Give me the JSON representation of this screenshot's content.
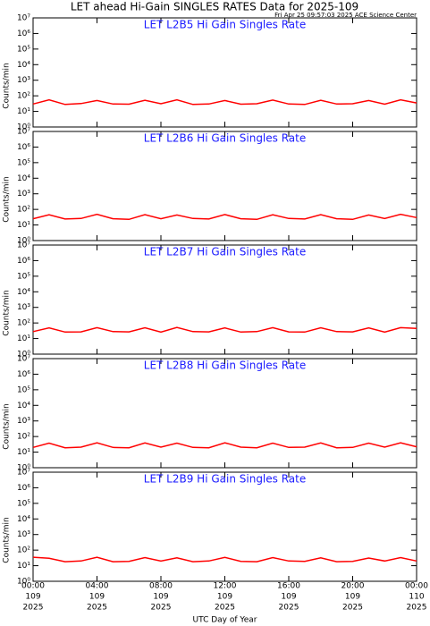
{
  "title": "LET ahead Hi-Gain SINGLES RATES Data for 2025-109",
  "timestamp": "Fri Apr 25 09:57:03 2025 ACE Science Center",
  "chart_data": [
    {
      "type": "line",
      "title": "LET L2B5 Hi Gain Singles Rate",
      "ylabel": "Counts/min",
      "log": true,
      "xlim": [
        0,
        24
      ],
      "xticks": [
        0,
        4,
        8,
        12,
        16,
        20,
        24
      ],
      "ylim": [
        1,
        10000000
      ],
      "yticks": [
        {
          "value": 1,
          "label": "10⁰"
        },
        {
          "value": 10,
          "label": "10¹"
        },
        {
          "value": 100,
          "label": "10²"
        },
        {
          "value": 1000,
          "label": "10³"
        },
        {
          "value": 10000,
          "label": "10⁴"
        },
        {
          "value": 100000,
          "label": "10⁵"
        },
        {
          "value": 1000000,
          "label": "10⁶"
        },
        {
          "value": 10000000,
          "label": "10⁷"
        }
      ],
      "series": [
        {
          "color": "#ff0000",
          "x": [
            0,
            1,
            2,
            3,
            4,
            5,
            6,
            7,
            8,
            9,
            10,
            11,
            12,
            13,
            14,
            15,
            16,
            17,
            18,
            19,
            20,
            21,
            22,
            23,
            24
          ],
          "values": [
            30,
            55,
            28,
            32,
            50,
            30,
            29,
            52,
            31,
            55,
            28,
            30,
            50,
            29,
            31,
            53,
            30,
            28,
            52,
            30,
            31,
            50,
            29,
            55,
            35
          ]
        }
      ]
    },
    {
      "type": "line",
      "title": "LET L2B6 Hi Gain Singles Rate",
      "ylabel": "Counts/min",
      "log": true,
      "xlim": [
        0,
        24
      ],
      "xticks": [
        0,
        4,
        8,
        12,
        16,
        20,
        24
      ],
      "ylim": [
        1,
        10000000
      ],
      "yticks": [
        {
          "value": 1,
          "label": "10⁰"
        },
        {
          "value": 10,
          "label": "10¹"
        },
        {
          "value": 100,
          "label": "10²"
        },
        {
          "value": 1000,
          "label": "10³"
        },
        {
          "value": 10000,
          "label": "10⁴"
        },
        {
          "value": 100000,
          "label": "10⁵"
        },
        {
          "value": 1000000,
          "label": "10⁶"
        },
        {
          "value": 10000000,
          "label": "10⁷"
        }
      ],
      "series": [
        {
          "color": "#ff0000",
          "x": [
            0,
            1,
            2,
            3,
            4,
            5,
            6,
            7,
            8,
            9,
            10,
            11,
            12,
            13,
            14,
            15,
            16,
            17,
            18,
            19,
            20,
            21,
            22,
            23,
            24
          ],
          "values": [
            25,
            45,
            24,
            26,
            48,
            25,
            23,
            46,
            25,
            44,
            26,
            24,
            47,
            25,
            23,
            45,
            26,
            24,
            46,
            25,
            23,
            44,
            26,
            48,
            30
          ]
        }
      ]
    },
    {
      "type": "line",
      "title": "LET L2B7 Hi Gain Singles Rate",
      "ylabel": "Counts/min",
      "log": true,
      "xlim": [
        0,
        24
      ],
      "xticks": [
        0,
        4,
        8,
        12,
        16,
        20,
        24
      ],
      "ylim": [
        1,
        10000000
      ],
      "yticks": [
        {
          "value": 1,
          "label": "10⁰"
        },
        {
          "value": 10,
          "label": "10¹"
        },
        {
          "value": 100,
          "label": "10²"
        },
        {
          "value": 1000,
          "label": "10³"
        },
        {
          "value": 10000,
          "label": "10⁴"
        },
        {
          "value": 100000,
          "label": "10⁵"
        },
        {
          "value": 1000000,
          "label": "10⁶"
        },
        {
          "value": 10000000,
          "label": "10⁷"
        }
      ],
      "series": [
        {
          "color": "#ff0000",
          "x": [
            0,
            1,
            2,
            3,
            4,
            5,
            6,
            7,
            8,
            9,
            10,
            11,
            12,
            13,
            14,
            15,
            16,
            17,
            18,
            19,
            20,
            21,
            22,
            23,
            24
          ],
          "values": [
            28,
            48,
            26,
            27,
            50,
            28,
            27,
            49,
            26,
            51,
            28,
            27,
            48,
            26,
            28,
            50,
            27,
            26,
            49,
            28,
            27,
            48,
            26,
            50,
            45
          ]
        }
      ]
    },
    {
      "type": "line",
      "title": "LET L2B8 Hi Gain Singles Rate",
      "ylabel": "Counts/min",
      "log": true,
      "xlim": [
        0,
        24
      ],
      "xticks": [
        0,
        4,
        8,
        12,
        16,
        20,
        24
      ],
      "ylim": [
        1,
        10000000
      ],
      "yticks": [
        {
          "value": 1,
          "label": "10⁰"
        },
        {
          "value": 10,
          "label": "10¹"
        },
        {
          "value": 100,
          "label": "10²"
        },
        {
          "value": 1000,
          "label": "10³"
        },
        {
          "value": 10000,
          "label": "10⁴"
        },
        {
          "value": 100000,
          "label": "10⁵"
        },
        {
          "value": 1000000,
          "label": "10⁶"
        },
        {
          "value": 10000000,
          "label": "10⁷"
        }
      ],
      "series": [
        {
          "color": "#ff0000",
          "x": [
            0,
            1,
            2,
            3,
            4,
            5,
            6,
            7,
            8,
            9,
            10,
            11,
            12,
            13,
            14,
            15,
            16,
            17,
            18,
            19,
            20,
            21,
            22,
            23,
            24
          ],
          "values": [
            20,
            38,
            19,
            21,
            40,
            20,
            19,
            39,
            21,
            38,
            20,
            19,
            40,
            21,
            19,
            38,
            20,
            21,
            39,
            19,
            20,
            38,
            21,
            40,
            22
          ]
        }
      ]
    },
    {
      "type": "line",
      "title": "LET L2B9 Hi Gain Singles Rate",
      "ylabel": "Counts/min",
      "log": true,
      "xlabel": "UTC Day of Year",
      "xlim": [
        0,
        24
      ],
      "xticks": [
        {
          "value": 0,
          "label": [
            "00:00",
            "109",
            "2025"
          ]
        },
        {
          "value": 4,
          "label": [
            "04:00",
            "109",
            "2025"
          ]
        },
        {
          "value": 8,
          "label": [
            "08:00",
            "109",
            "2025"
          ]
        },
        {
          "value": 12,
          "label": [
            "12:00",
            "109",
            "2025"
          ]
        },
        {
          "value": 16,
          "label": [
            "16:00",
            "109",
            "2025"
          ]
        },
        {
          "value": 20,
          "label": [
            "20:00",
            "109",
            "2025"
          ]
        },
        {
          "value": 24,
          "label": [
            "00:00",
            "110",
            "2025"
          ]
        }
      ],
      "ylim": [
        1,
        10000000
      ],
      "yticks": [
        {
          "value": 1,
          "label": "10⁰"
        },
        {
          "value": 10,
          "label": "10¹"
        },
        {
          "value": 100,
          "label": "10²"
        },
        {
          "value": 1000,
          "label": "10³"
        },
        {
          "value": 10000,
          "label": "10⁴"
        },
        {
          "value": 100000,
          "label": "10⁵"
        },
        {
          "value": 1000000,
          "label": "10⁶"
        },
        {
          "value": 10000000,
          "label": "10⁷"
        }
      ],
      "series": [
        {
          "color": "#ff0000",
          "x": [
            0,
            1,
            2,
            3,
            4,
            5,
            6,
            7,
            8,
            9,
            10,
            11,
            12,
            13,
            14,
            15,
            16,
            17,
            18,
            19,
            20,
            21,
            22,
            23,
            24
          ],
          "values": [
            35,
            30,
            18,
            20,
            35,
            18,
            19,
            33,
            20,
            32,
            18,
            20,
            34,
            19,
            18,
            33,
            20,
            19,
            32,
            18,
            19,
            31,
            20,
            33,
            20
          ]
        }
      ]
    }
  ]
}
